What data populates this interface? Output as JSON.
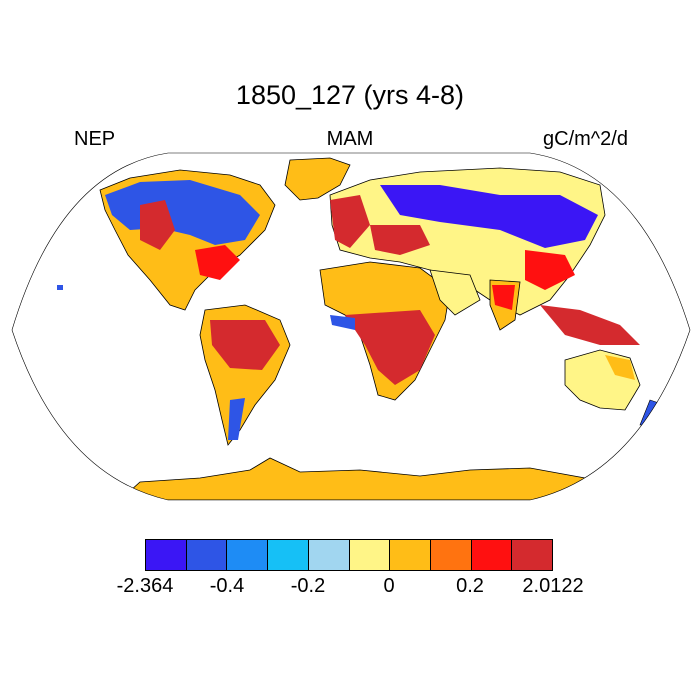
{
  "title": "1850_127 (yrs 4-8)",
  "left_label": "NEP",
  "center_label": "MAM",
  "right_label": "gC/m^2/d",
  "colorbar": {
    "colors": [
      "#3b16f5",
      "#2e55e6",
      "#1e8cf5",
      "#16c0f6",
      "#a1d6f0",
      "#fff587",
      "#ffbd17",
      "#ff7310",
      "#ff1010",
      "#d42a2e"
    ],
    "ticks": [
      "-2.364",
      "-0.4",
      "-0.2",
      "0",
      "0.2",
      "2.0122"
    ]
  },
  "map_colors": {
    "ocean": "#ffffff",
    "coast": "#000000",
    "antarctica": "#ffbd17",
    "greenland": "#ffbd17"
  }
}
